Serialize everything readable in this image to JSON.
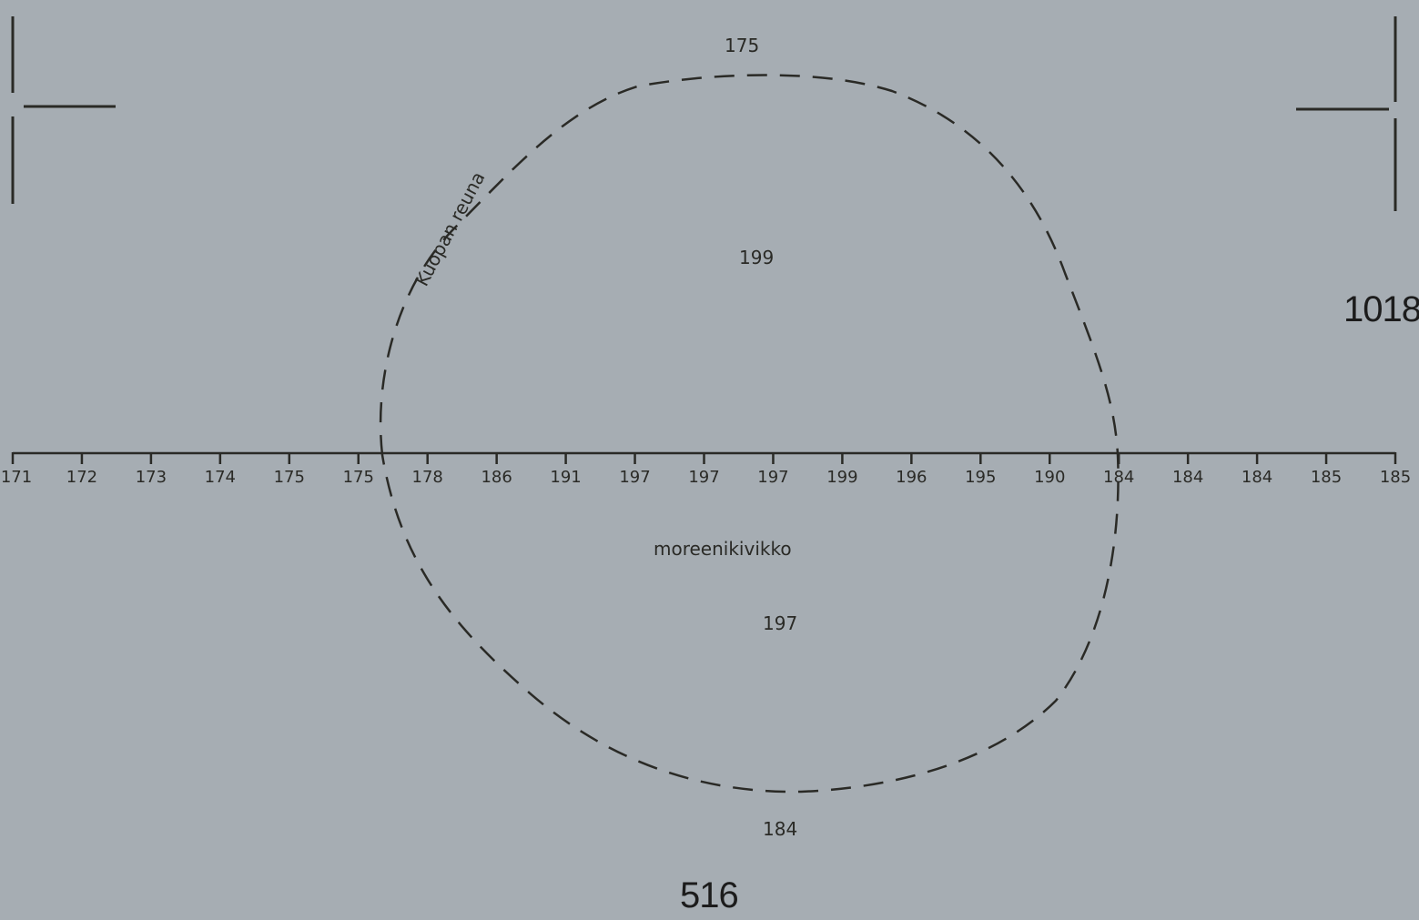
{
  "drawing": {
    "sheet_number": "516",
    "plan_number": "1018",
    "pit_label": "Kuopan reuna",
    "soil_label": "moreenikivikko",
    "elevation_top": "175",
    "elevation_upper_inside": "199",
    "elevation_lower_inside": "197",
    "elevation_bottom": "184",
    "profile_ticks": [
      "171",
      "172",
      "173",
      "174",
      "175",
      "175",
      "178",
      "186",
      "191",
      "197",
      "197",
      "197",
      "199",
      "196",
      "195",
      "190",
      "184",
      "184",
      "184",
      "185",
      "185"
    ]
  },
  "colors": {
    "background": "#a6adb3",
    "ink": "#2a2a26"
  }
}
